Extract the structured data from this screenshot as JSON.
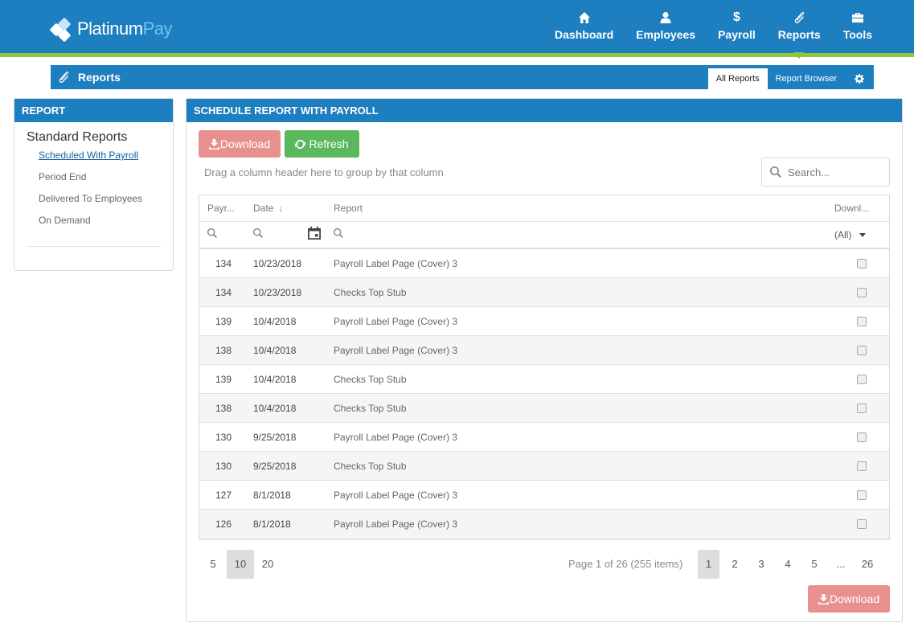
{
  "brand": {
    "name_main": "Platinum",
    "name_accent": "Pay"
  },
  "nav": [
    {
      "label": "Dashboard",
      "icon": "home-icon"
    },
    {
      "label": "Employees",
      "icon": "user-icon"
    },
    {
      "label": "Payroll",
      "icon": "dollar-icon"
    },
    {
      "label": "Reports",
      "icon": "paperclip-icon",
      "active": true
    },
    {
      "label": "Tools",
      "icon": "toolbox-icon"
    }
  ],
  "subbar": {
    "title": "Reports",
    "tabs": [
      {
        "label": "All Reports",
        "active": true
      },
      {
        "label": "Report Browser"
      }
    ]
  },
  "left_panel": {
    "header": "REPORT",
    "section_title": "Standard Reports",
    "links": [
      "Scheduled With Payroll",
      "Period End",
      "Delivered To Employees",
      "On Demand"
    ]
  },
  "main_panel": {
    "header": "SCHEDULE REPORT WITH PAYROLL",
    "download_label": "Download",
    "refresh_label": "Refresh",
    "group_hint": "Drag a column header here to group by that column",
    "search_placeholder": "Search..."
  },
  "grid": {
    "columns": {
      "payroll": "Payr...",
      "date": "Date",
      "report": "Report",
      "download": "Downl..."
    },
    "download_filter": "(All)",
    "rows": [
      {
        "payroll": "134",
        "date": "10/23/2018",
        "report": "Payroll Label Page (Cover) 3"
      },
      {
        "payroll": "134",
        "date": "10/23/2018",
        "report": "Checks Top Stub"
      },
      {
        "payroll": "139",
        "date": "10/4/2018",
        "report": "Payroll Label Page (Cover) 3"
      },
      {
        "payroll": "138",
        "date": "10/4/2018",
        "report": "Payroll Label Page (Cover) 3"
      },
      {
        "payroll": "139",
        "date": "10/4/2018",
        "report": "Checks Top Stub"
      },
      {
        "payroll": "138",
        "date": "10/4/2018",
        "report": "Checks Top Stub"
      },
      {
        "payroll": "130",
        "date": "9/25/2018",
        "report": "Payroll Label Page (Cover) 3"
      },
      {
        "payroll": "130",
        "date": "9/25/2018",
        "report": "Checks Top Stub"
      },
      {
        "payroll": "127",
        "date": "8/1/2018",
        "report": "Payroll Label Page (Cover) 3"
      },
      {
        "payroll": "126",
        "date": "8/1/2018",
        "report": "Payroll Label Page (Cover) 3"
      }
    ]
  },
  "pager": {
    "sizes": [
      "5",
      "10",
      "20"
    ],
    "active_size": "10",
    "info": "Page 1 of 26 (255 items)",
    "pages": [
      "1",
      "2",
      "3",
      "4",
      "5",
      "...",
      "26"
    ],
    "active_page": "1"
  },
  "footer": {
    "download_label": "Download"
  }
}
